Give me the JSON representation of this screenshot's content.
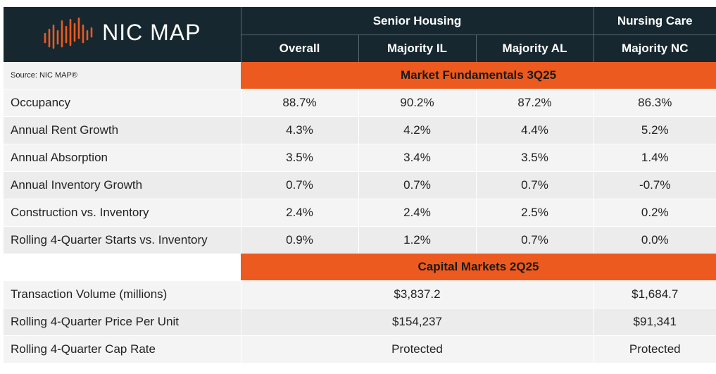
{
  "brand": {
    "name": "NIC MAP",
    "accent": "#ec5a1f",
    "dark": "#16272f"
  },
  "source_note": "Source: NIC MAP®",
  "header": {
    "groups": [
      "Senior Housing",
      "Nursing Care"
    ],
    "columns": [
      "Overall",
      "Majority IL",
      "Majority AL",
      "Majority NC"
    ]
  },
  "chart_data": {
    "type": "table",
    "sections": [
      {
        "title": "Market Fundamentals 3Q25",
        "rows": [
          {
            "label": "Occupancy",
            "values": [
              "88.7%",
              "90.2%",
              "87.2%",
              "86.3%"
            ]
          },
          {
            "label": "Annual Rent Growth",
            "values": [
              "4.3%",
              "4.2%",
              "4.4%",
              "5.2%"
            ]
          },
          {
            "label": "Annual Absorption",
            "values": [
              "3.5%",
              "3.4%",
              "3.5%",
              "1.4%"
            ]
          },
          {
            "label": "Annual Inventory Growth",
            "values": [
              "0.7%",
              "0.7%",
              "0.7%",
              "-0.7%"
            ]
          },
          {
            "label": "Construction vs. Inventory",
            "values": [
              "2.4%",
              "2.4%",
              "2.5%",
              "0.2%"
            ]
          },
          {
            "label": "Rolling 4-Quarter Starts vs. Inventory",
            "values": [
              "0.9%",
              "1.2%",
              "0.7%",
              "0.0%"
            ]
          }
        ]
      },
      {
        "title": "Capital Markets 2Q25",
        "rows": [
          {
            "label": "Transaction Volume (millions)",
            "senior_housing": "$3,837.2",
            "nursing_care": "$1,684.7"
          },
          {
            "label": "Rolling 4-Quarter Price Per Unit",
            "senior_housing": "$154,237",
            "nursing_care": "$91,341"
          },
          {
            "label": "Rolling 4-Quarter Cap Rate",
            "senior_housing": "Protected",
            "nursing_care": "Protected"
          }
        ]
      }
    ]
  }
}
